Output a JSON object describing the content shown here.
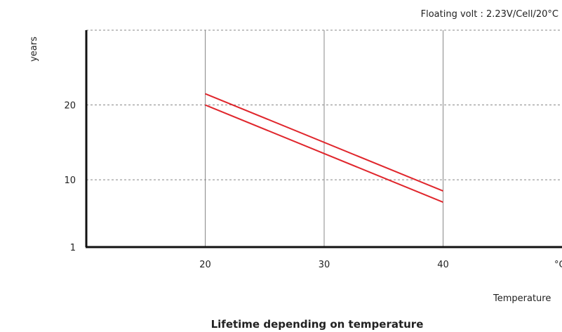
{
  "chart_data": {
    "type": "line",
    "title": "Lifetime depending on temperature",
    "annotation": "Floating volt : 2.23V/Cell/20°C",
    "ylabel": "years",
    "xlabel": "Temperature",
    "x_unit_label": "°C",
    "x_ticks": [
      20,
      30,
      40
    ],
    "y_ticks": [
      {
        "value": 1,
        "label": "1"
      },
      {
        "value": 10,
        "label": "10"
      },
      {
        "value": 20,
        "label": "20"
      }
    ],
    "xlim": [
      10,
      50
    ],
    "ylim": [
      1,
      30
    ],
    "grid": true,
    "colors": {
      "series": "#e0262c",
      "axis": "#111111",
      "grid": "#888888"
    },
    "series": [
      {
        "x": [
          20,
          40
        ],
        "y": [
          21.5,
          8.5
        ]
      },
      {
        "x": [
          20,
          40
        ],
        "y": [
          20,
          7
        ]
      }
    ]
  }
}
